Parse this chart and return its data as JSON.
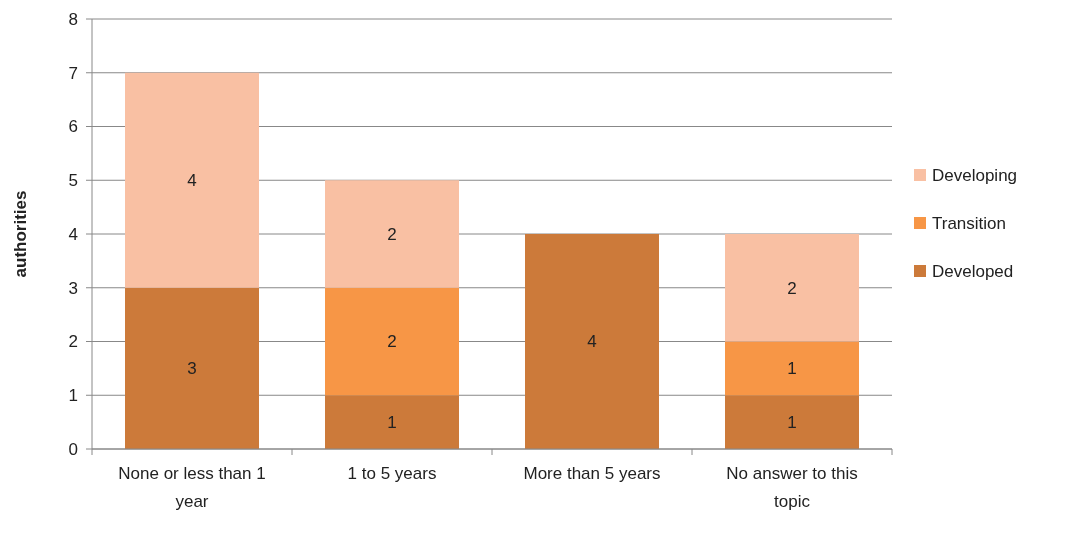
{
  "chart_data": {
    "type": "bar",
    "stacked": true,
    "ylabel": "authorities",
    "categories": [
      "None or less than 1 year",
      "1 to 5 years",
      "More than 5 years",
      "No answer to this topic"
    ],
    "series": [
      {
        "name": "Developed",
        "color": "#cc7a3a",
        "values": [
          3,
          1,
          4,
          1
        ]
      },
      {
        "name": "Transition",
        "color": "#f79646",
        "values": [
          null,
          2,
          null,
          1
        ]
      },
      {
        "name": "Developing",
        "color": "#f9c0a3",
        "values": [
          4,
          2,
          null,
          2
        ]
      }
    ],
    "ylim": [
      0,
      8
    ],
    "yticks": [
      0,
      1,
      2,
      3,
      4,
      5,
      6,
      7,
      8
    ],
    "grid": "y",
    "legend": "right",
    "data_labels": true
  }
}
